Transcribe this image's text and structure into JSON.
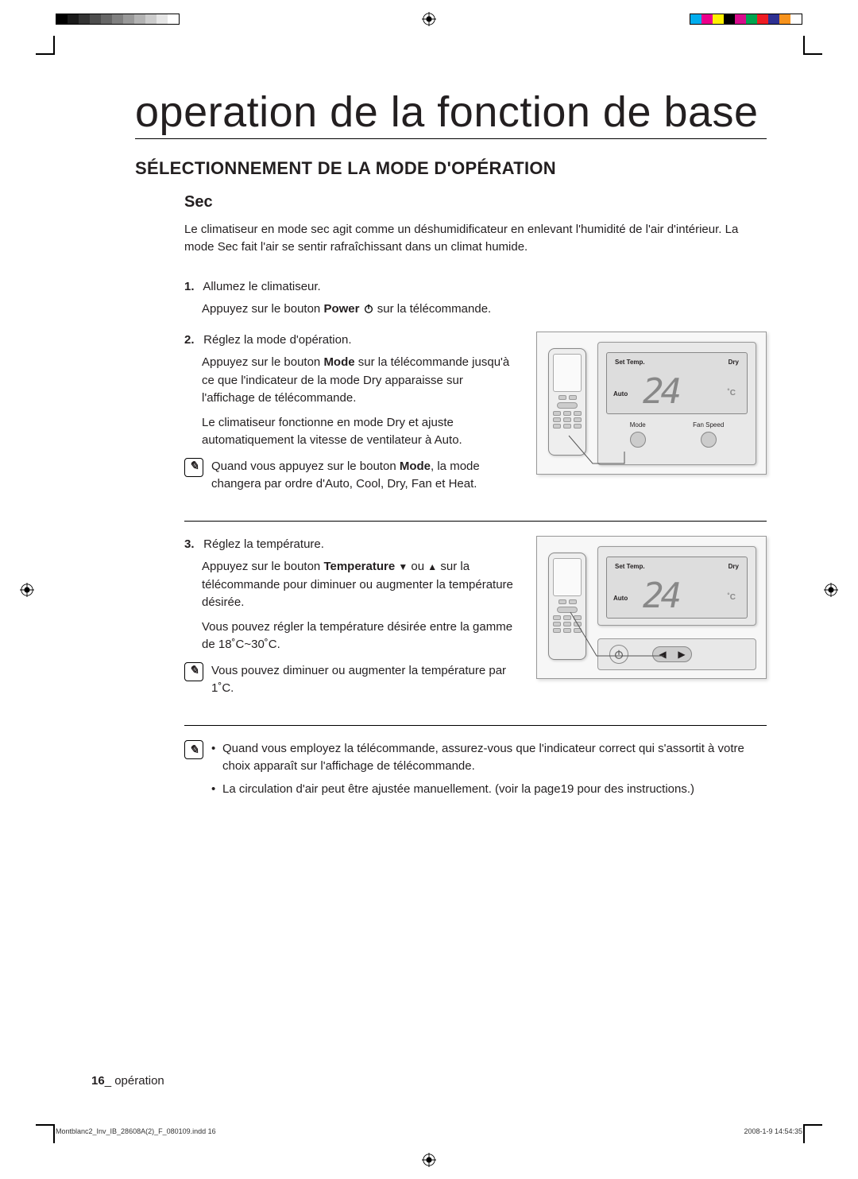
{
  "registration": {
    "grayscale_bar": [
      "#000000",
      "#1a1a1a",
      "#333333",
      "#4d4d4d",
      "#666666",
      "#808080",
      "#999999",
      "#b3b3b3",
      "#cccccc",
      "#e6e6e6",
      "#ffffff"
    ],
    "color_bar": [
      "#00adee",
      "#ec008b",
      "#fff100",
      "#000000",
      "#d80b8c",
      "#00a550",
      "#ee1c23",
      "#2e3092",
      "#f7931d",
      "#ffffff"
    ]
  },
  "title": "operation de la fonction de base",
  "section_heading": "SÉLECTIONNEMENT DE LA MODE D'OPÉRATION",
  "subsection_heading": "Sec",
  "intro": "Le climatiseur en mode sec agit comme un déshumidificateur en enlevant l'humidité de l'air d'intérieur. La mode Sec fait l'air se sentir rafraîchissant dans un climat humide.",
  "steps": {
    "s1": {
      "num": "1.",
      "title": "Allumez le climatiseur.",
      "body_pre": "Appuyez sur le bouton ",
      "body_bold": "Power",
      "body_post": " sur la télécommande."
    },
    "s2": {
      "num": "2.",
      "title": "Réglez la mode d'opération.",
      "body_pre": "Appuyez sur le bouton ",
      "body_bold": "Mode",
      "body_post": " sur la télécommande jusqu'à ce que l'indicateur de la mode Dry apparaisse sur l'affichage de télécommande.",
      "body2": "Le climatiseur fonctionne en mode Dry et ajuste automatiquement la vitesse de ventilateur à Auto."
    },
    "s3": {
      "num": "3.",
      "title": "Réglez la température.",
      "body_pre": "Appuyez sur le bouton ",
      "body_bold": "Temperature",
      "body_post": " sur la télécommande pour diminuer ou augmenter la température désirée.",
      "body_tri_down": "▼",
      "body_tri_up": "▲",
      "body_tri_sep": " ou ",
      "body2": "Vous pouvez régler la température désirée entre la gamme de 18˚C~30˚C."
    }
  },
  "notes": {
    "n1_pre": "Quand vous appuyez sur le bouton ",
    "n1_bold": "Mode",
    "n1_post": ", la mode changera par ordre d'Auto, Cool, Dry, Fan et Heat.",
    "n2": "Vous pouvez diminuer ou augmenter la température par 1˚C.",
    "n3_b1": "Quand vous employez la télécommande, assurez-vous que l'indicateur correct qui s'assortit à votre choix apparaît sur l'affichage de télécommande.",
    "n3_b2": "La circulation d'air peut être ajustée manuellement. (voir la page19 pour des instructions.)"
  },
  "figure": {
    "lcd": {
      "set_temp_label": "Set Temp.",
      "dry_label": "Dry",
      "auto_label": "Auto",
      "temp_value": "24",
      "unit": "˚C"
    },
    "panel_buttons": {
      "mode": "Mode",
      "fanspeed": "Fan Speed"
    }
  },
  "footer": {
    "page_number": "16",
    "separator": "_",
    "section_name": " opération"
  },
  "print_footer": {
    "filename": "Montblanc2_Inv_IB_28608A(2)_F_080109.indd   16",
    "timestamp": "2008-1-9   14:54:35"
  }
}
